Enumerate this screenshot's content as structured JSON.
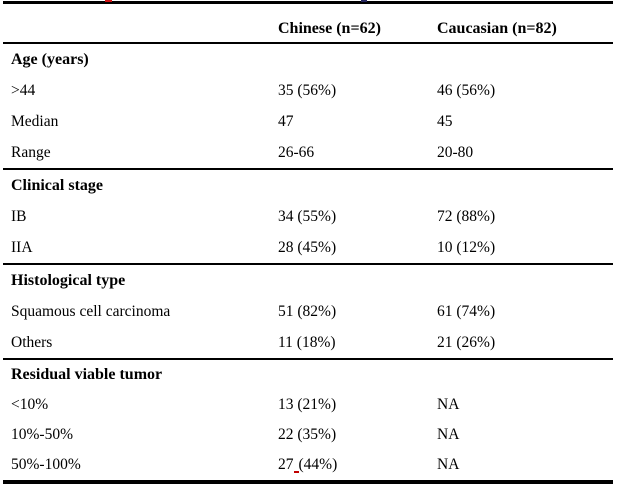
{
  "colors": {
    "text": "#000000",
    "rule": "#000000",
    "proofing_red": "#c00000",
    "top_mark_red": "#cc1111",
    "top_mark_navy": "#26265e"
  },
  "table": {
    "columns": [
      "",
      "Chinese (n=62)",
      "Caucasian (n=82)"
    ],
    "sections": [
      {
        "title": "Age (years)",
        "rows": [
          {
            "label": ">44",
            "chinese": "35 (56%)",
            "caucasian": "46 (56%)"
          },
          {
            "label": "Median",
            "chinese": "47",
            "caucasian": "45"
          },
          {
            "label": "Range",
            "chinese": "26-66",
            "caucasian": "20-80"
          }
        ]
      },
      {
        "title": "Clinical stage",
        "rows": [
          {
            "label": "IB",
            "chinese": "34 (55%)",
            "caucasian": "72 (88%)"
          },
          {
            "label": "IIA",
            "chinese": "28 (45%)",
            "caucasian": "10 (12%)"
          }
        ]
      },
      {
        "title": "Histological type",
        "rows": [
          {
            "label": "Squamous cell carcinoma",
            "chinese": "51 (82%)",
            "caucasian": "61 (74%)"
          },
          {
            "label": "Others",
            "chinese": "11 (18%)",
            "caucasian": "21 (26%)"
          }
        ]
      },
      {
        "title": "Residual viable tumor",
        "rows": [
          {
            "label": "<10%",
            "chinese": "13 (21%)",
            "caucasian": "NA"
          },
          {
            "label": "10%-50%",
            "chinese": "22 (35%)",
            "caucasian": "NA"
          },
          {
            "label": "50%-100%",
            "chinese_num": "27",
            "chinese_rest": "(44%)",
            "caucasian": "NA"
          }
        ]
      }
    ]
  }
}
